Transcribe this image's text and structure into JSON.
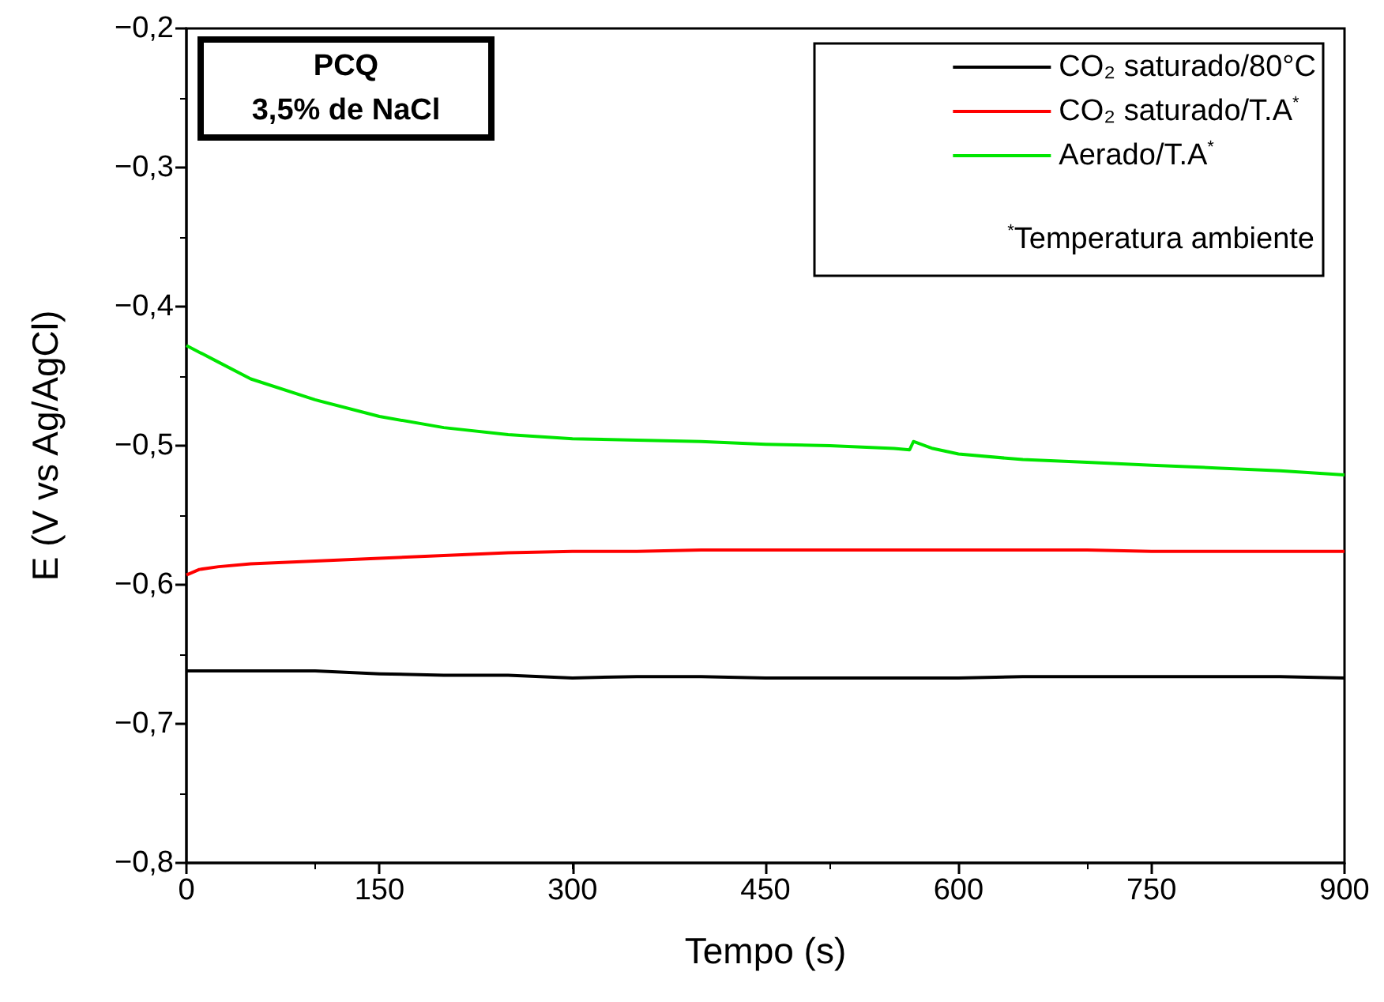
{
  "chart_data": {
    "type": "line",
    "xlabel": "Tempo (s)",
    "ylabel": "E (V vs Ag/AgCl)",
    "annotations": [
      "PCQ",
      "3,5% de NaCl",
      "$^{*}$Temperatura ambiente"
    ],
    "xlim": [
      0,
      900
    ],
    "xticks": [
      0,
      150,
      300,
      450,
      600,
      750,
      900
    ],
    "ylim": [
      -0.8,
      -0.2
    ],
    "yticks": [
      {
        "value": -0.8,
        "label": "−0,8"
      },
      {
        "value": -0.7,
        "label": "−0,7"
      },
      {
        "value": -0.6,
        "label": "−0,6"
      },
      {
        "value": -0.5,
        "label": "−0,5"
      },
      {
        "value": -0.4,
        "label": "−0,4"
      },
      {
        "value": -0.3,
        "label": "−0,3"
      },
      {
        "value": -0.2,
        "label": "−0,2"
      }
    ],
    "grid": false,
    "legend": "top right",
    "marker": "none",
    "line_style": "solid",
    "series": [
      {
        "name": "CO₂ saturado/80°C",
        "color": "#000000",
        "x": [
          0,
          50,
          100,
          150,
          200,
          250,
          300,
          350,
          400,
          450,
          500,
          550,
          600,
          650,
          700,
          750,
          800,
          850,
          900
        ],
        "values": [
          -0.662,
          -0.662,
          -0.662,
          -0.664,
          -0.665,
          -0.665,
          -0.667,
          -0.666,
          -0.666,
          -0.667,
          -0.667,
          -0.667,
          -0.667,
          -0.666,
          -0.666,
          -0.666,
          -0.666,
          -0.666,
          -0.667
        ]
      },
      {
        "name": "CO₂ saturado/T.A$^{*}$",
        "color": "#ff0000",
        "x": [
          0,
          10,
          25,
          50,
          100,
          150,
          200,
          250,
          300,
          350,
          400,
          450,
          500,
          550,
          600,
          650,
          700,
          750,
          800,
          850,
          900
        ],
        "values": [
          -0.593,
          -0.589,
          -0.587,
          -0.585,
          -0.583,
          -0.581,
          -0.579,
          -0.577,
          -0.576,
          -0.576,
          -0.575,
          -0.575,
          -0.575,
          -0.575,
          -0.575,
          -0.575,
          -0.575,
          -0.576,
          -0.576,
          -0.576,
          -0.576
        ]
      },
      {
        "name": "Aerado/T.A$^{*}$",
        "color": "#00e600",
        "x": [
          0,
          25,
          50,
          100,
          150,
          200,
          250,
          300,
          350,
          400,
          450,
          500,
          550,
          562,
          565,
          580,
          600,
          650,
          700,
          750,
          800,
          850,
          900
        ],
        "values": [
          -0.428,
          -0.44,
          -0.452,
          -0.467,
          -0.479,
          -0.487,
          -0.492,
          -0.495,
          -0.496,
          -0.497,
          -0.499,
          -0.5,
          -0.502,
          -0.503,
          -0.497,
          -0.502,
          -0.506,
          -0.51,
          -0.512,
          -0.514,
          -0.516,
          -0.518,
          -0.521
        ]
      }
    ]
  }
}
